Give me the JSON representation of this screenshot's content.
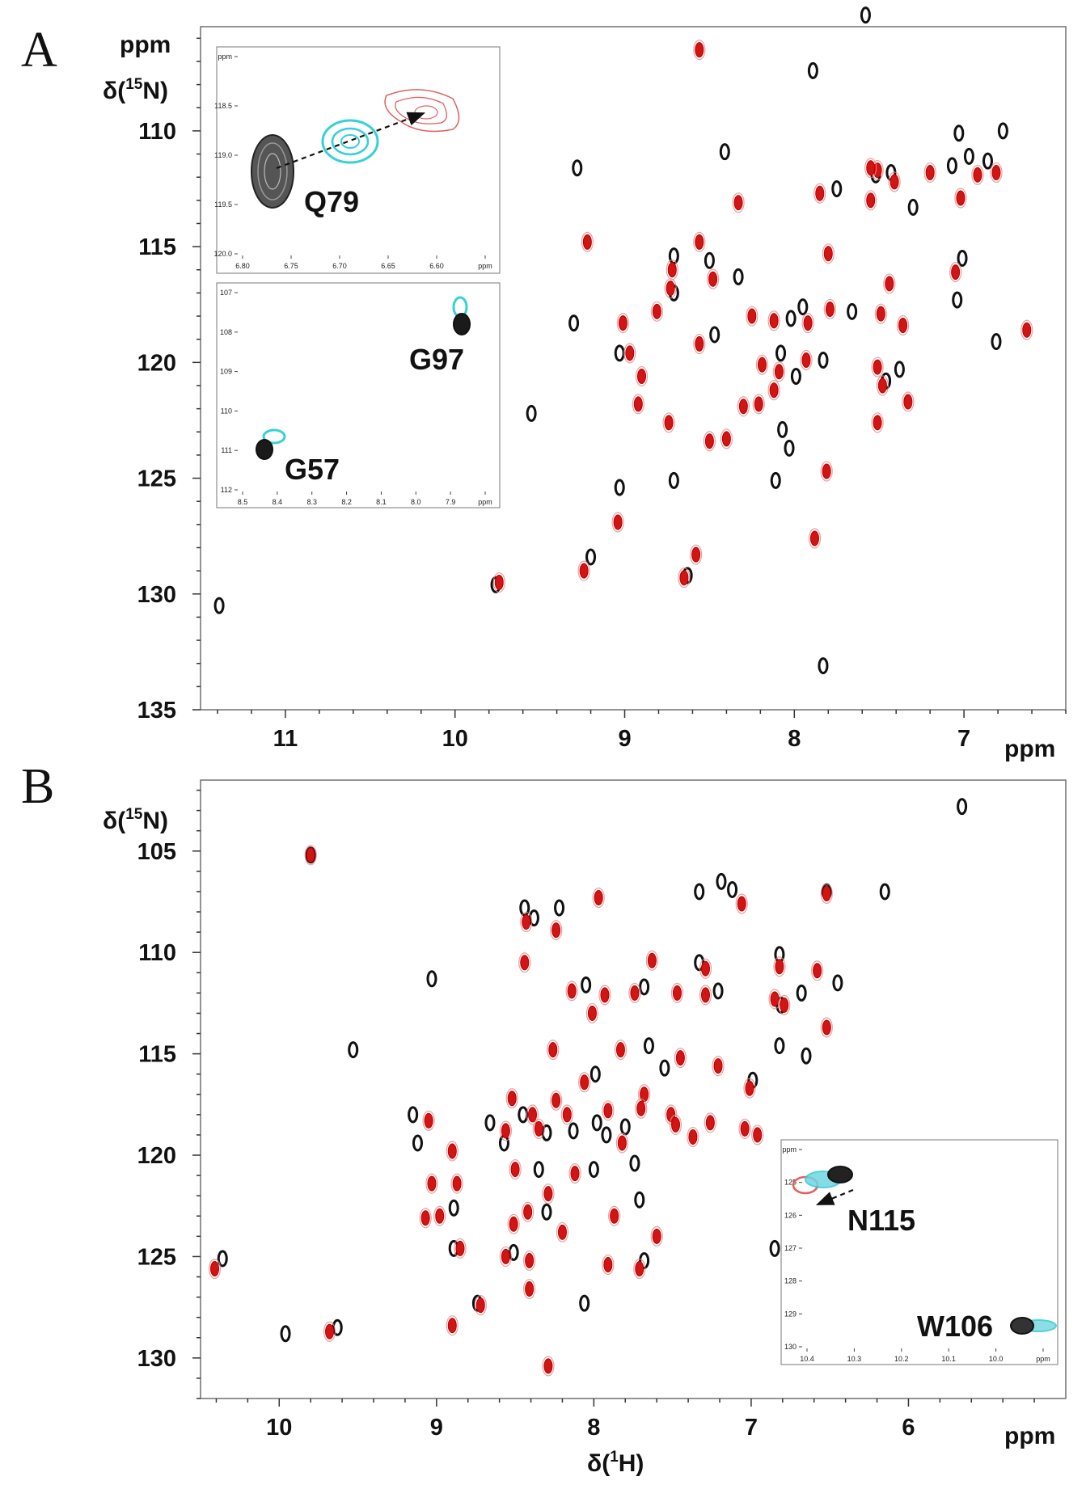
{
  "chart_data": [
    {
      "panel": "A",
      "type": "scatter",
      "subtype": "2D 1H-15N HSQC overlay",
      "xlabel": "ppm",
      "ylabel_top": "ppm",
      "ylabel": "δ(15N)",
      "xlim": [
        11.5,
        6.4
      ],
      "ylim": [
        105.5,
        135
      ],
      "xticks": [
        "11",
        "10",
        "9",
        "8",
        "7"
      ],
      "yticks": [
        "110",
        "115",
        "120",
        "125",
        "130",
        "135"
      ],
      "series": [
        {
          "name": "black",
          "color": "#111111",
          "points": [
            [
              7.58,
              105.0
            ],
            [
              7.89,
              107.4
            ],
            [
              6.77,
              110.0
            ],
            [
              7.03,
              110.1
            ],
            [
              7.07,
              111.5
            ],
            [
              6.86,
              111.3
            ],
            [
              6.97,
              111.1
            ],
            [
              7.52,
              111.9
            ],
            [
              7.43,
              111.8
            ],
            [
              8.41,
              110.9
            ],
            [
              9.28,
              111.6
            ],
            [
              7.3,
              113.3
            ],
            [
              7.75,
              112.5
            ],
            [
              7.01,
              115.5
            ],
            [
              8.71,
              115.4
            ],
            [
              8.5,
              115.6
            ],
            [
              8.33,
              116.3
            ],
            [
              7.04,
              117.3
            ],
            [
              8.71,
              117.0
            ],
            [
              7.95,
              117.6
            ],
            [
              7.66,
              117.8
            ],
            [
              9.3,
              118.3
            ],
            [
              8.02,
              118.1
            ],
            [
              8.47,
              118.8
            ],
            [
              8.08,
              119.6
            ],
            [
              7.83,
              119.9
            ],
            [
              6.81,
              119.1
            ],
            [
              7.99,
              120.6
            ],
            [
              7.46,
              120.8
            ],
            [
              7.38,
              120.3
            ],
            [
              9.03,
              119.6
            ],
            [
              9.55,
              122.2
            ],
            [
              8.07,
              122.9
            ],
            [
              8.03,
              123.7
            ],
            [
              9.03,
              125.4
            ],
            [
              8.71,
              125.1
            ],
            [
              8.11,
              125.1
            ],
            [
              9.2,
              128.4
            ],
            [
              8.63,
              129.2
            ],
            [
              9.76,
              129.6
            ],
            [
              11.39,
              130.5
            ],
            [
              7.83,
              133.1
            ]
          ]
        },
        {
          "name": "red",
          "color": "#d41616",
          "points": [
            [
              8.56,
              106.5
            ],
            [
              7.51,
              111.7
            ],
            [
              7.41,
              112.2
            ],
            [
              7.2,
              111.8
            ],
            [
              6.92,
              111.9
            ],
            [
              6.81,
              111.8
            ],
            [
              7.55,
              111.6
            ],
            [
              7.85,
              112.7
            ],
            [
              7.02,
              112.9
            ],
            [
              7.55,
              113.0
            ],
            [
              8.33,
              113.1
            ],
            [
              9.22,
              114.8
            ],
            [
              8.56,
              114.8
            ],
            [
              8.72,
              116.0
            ],
            [
              8.48,
              116.4
            ],
            [
              8.73,
              116.8
            ],
            [
              7.8,
              115.3
            ],
            [
              7.44,
              116.6
            ],
            [
              7.05,
              116.1
            ],
            [
              6.63,
              118.6
            ],
            [
              9.01,
              118.3
            ],
            [
              8.81,
              117.8
            ],
            [
              8.56,
              119.2
            ],
            [
              8.25,
              118.0
            ],
            [
              8.12,
              118.2
            ],
            [
              7.92,
              118.3
            ],
            [
              7.79,
              117.7
            ],
            [
              7.49,
              117.9
            ],
            [
              7.36,
              118.4
            ],
            [
              8.97,
              119.6
            ],
            [
              8.9,
              120.6
            ],
            [
              8.19,
              120.1
            ],
            [
              8.09,
              120.4
            ],
            [
              7.93,
              119.9
            ],
            [
              8.12,
              121.2
            ],
            [
              8.21,
              121.8
            ],
            [
              8.3,
              121.9
            ],
            [
              8.92,
              121.8
            ],
            [
              8.74,
              122.6
            ],
            [
              8.5,
              123.4
            ],
            [
              8.4,
              123.3
            ],
            [
              7.51,
              122.6
            ],
            [
              7.51,
              120.2
            ],
            [
              7.48,
              121.0
            ],
            [
              7.33,
              121.7
            ],
            [
              7.81,
              124.7
            ],
            [
              9.04,
              126.9
            ],
            [
              7.88,
              127.6
            ],
            [
              8.58,
              128.3
            ],
            [
              9.24,
              129.0
            ],
            [
              9.74,
              129.5
            ],
            [
              8.65,
              129.3
            ]
          ]
        }
      ],
      "insets": [
        {
          "xlim": [
            6.8,
            6.57
          ],
          "ylim": [
            118.0,
            120.0
          ],
          "xticks": [
            "6.80",
            "6.75",
            "6.70",
            "6.65",
            "6.60",
            "ppm"
          ],
          "yticks": [
            "ppm",
            "118.5",
            "119.0",
            "119.5",
            "120.0"
          ],
          "annotation": "Q79",
          "arrow": "dashed, from black to red"
        },
        {
          "xlim": [
            8.5,
            7.85
          ],
          "ylim": [
            106.6,
            112.0
          ],
          "xticks": [
            "8.5",
            "8.4",
            "8.3",
            "8.2",
            "8.1",
            "8.0",
            "7.9",
            "ppm"
          ],
          "yticks": [
            "107",
            "108",
            "109",
            "110",
            "111",
            "112"
          ],
          "annotations": [
            "G97",
            "G57"
          ]
        }
      ]
    },
    {
      "panel": "B",
      "type": "scatter",
      "subtype": "2D 1H-15N HSQC overlay",
      "xlabel": "δ(1H)",
      "xlabel_unit": "ppm",
      "ylabel": "δ(15N)",
      "xlim": [
        10.5,
        5.0
      ],
      "ylim": [
        101.5,
        132
      ],
      "xticks": [
        "10",
        "9",
        "8",
        "7",
        "6"
      ],
      "yticks": [
        "105",
        "110",
        "115",
        "120",
        "125",
        "130"
      ],
      "series": [
        {
          "name": "black",
          "color": "#111111",
          "points": [
            [
              5.66,
              102.8
            ],
            [
              9.8,
              105.2
            ],
            [
              7.19,
              106.5
            ],
            [
              7.12,
              106.9
            ],
            [
              6.15,
              107.0
            ],
            [
              7.33,
              107.0
            ],
            [
              8.44,
              107.8
            ],
            [
              8.22,
              107.8
            ],
            [
              8.38,
              108.3
            ],
            [
              6.52,
              107.0
            ],
            [
              6.82,
              110.1
            ],
            [
              7.33,
              110.5
            ],
            [
              6.45,
              111.5
            ],
            [
              7.21,
              111.9
            ],
            [
              6.68,
              112.0
            ],
            [
              6.81,
              112.6
            ],
            [
              9.03,
              111.3
            ],
            [
              8.05,
              111.6
            ],
            [
              7.68,
              111.7
            ],
            [
              6.82,
              114.6
            ],
            [
              9.53,
              114.8
            ],
            [
              7.65,
              114.6
            ],
            [
              6.65,
              115.1
            ],
            [
              7.55,
              115.7
            ],
            [
              7.99,
              116.0
            ],
            [
              6.99,
              116.3
            ],
            [
              9.15,
              118.0
            ],
            [
              8.66,
              118.4
            ],
            [
              7.98,
              118.4
            ],
            [
              8.45,
              118.0
            ],
            [
              7.8,
              118.6
            ],
            [
              8.13,
              118.8
            ],
            [
              8.3,
              118.9
            ],
            [
              7.92,
              119.0
            ],
            [
              7.74,
              120.4
            ],
            [
              9.12,
              119.4
            ],
            [
              8.57,
              119.4
            ],
            [
              8.0,
              120.7
            ],
            [
              8.35,
              120.7
            ],
            [
              8.89,
              122.6
            ],
            [
              7.71,
              122.2
            ],
            [
              8.3,
              122.8
            ],
            [
              10.36,
              125.1
            ],
            [
              8.89,
              124.6
            ],
            [
              8.51,
              124.8
            ],
            [
              7.68,
              125.2
            ],
            [
              6.85,
              124.6
            ],
            [
              9.63,
              128.5
            ],
            [
              8.06,
              127.3
            ],
            [
              8.74,
              127.3
            ],
            [
              9.96,
              128.8
            ]
          ]
        },
        {
          "name": "red",
          "color": "#d41616",
          "points": [
            [
              9.8,
              105.2
            ],
            [
              7.97,
              107.3
            ],
            [
              7.06,
              107.6
            ],
            [
              6.52,
              107.1
            ],
            [
              8.43,
              108.5
            ],
            [
              8.24,
              108.9
            ],
            [
              8.44,
              110.5
            ],
            [
              7.63,
              110.4
            ],
            [
              7.29,
              110.8
            ],
            [
              6.82,
              110.7
            ],
            [
              6.58,
              110.9
            ],
            [
              8.14,
              111.9
            ],
            [
              7.93,
              112.1
            ],
            [
              7.47,
              112.0
            ],
            [
              7.29,
              112.1
            ],
            [
              6.85,
              112.3
            ],
            [
              8.01,
              113.0
            ],
            [
              7.74,
              112.0
            ],
            [
              6.79,
              112.6
            ],
            [
              6.52,
              113.7
            ],
            [
              7.83,
              114.8
            ],
            [
              8.26,
              114.8
            ],
            [
              7.45,
              115.2
            ],
            [
              7.21,
              115.6
            ],
            [
              8.06,
              116.4
            ],
            [
              7.68,
              117.0
            ],
            [
              7.01,
              116.7
            ],
            [
              8.52,
              117.2
            ],
            [
              8.24,
              117.3
            ],
            [
              7.7,
              117.7
            ],
            [
              8.39,
              118.0
            ],
            [
              8.17,
              118.0
            ],
            [
              7.91,
              117.8
            ],
            [
              7.51,
              118.0
            ],
            [
              7.26,
              118.4
            ],
            [
              6.96,
              119.0
            ],
            [
              8.56,
              118.8
            ],
            [
              8.35,
              118.7
            ],
            [
              7.48,
              118.5
            ],
            [
              7.37,
              119.1
            ],
            [
              7.04,
              118.7
            ],
            [
              9.05,
              118.3
            ],
            [
              8.9,
              119.8
            ],
            [
              7.82,
              119.4
            ],
            [
              8.5,
              120.7
            ],
            [
              8.12,
              120.9
            ],
            [
              8.87,
              121.4
            ],
            [
              9.03,
              121.4
            ],
            [
              8.29,
              121.9
            ],
            [
              8.42,
              122.8
            ],
            [
              9.07,
              123.1
            ],
            [
              8.98,
              123.0
            ],
            [
              8.2,
              123.8
            ],
            [
              8.51,
              123.4
            ],
            [
              7.87,
              123.0
            ],
            [
              7.6,
              124.0
            ],
            [
              8.41,
              125.2
            ],
            [
              8.56,
              125.0
            ],
            [
              7.71,
              125.6
            ],
            [
              7.91,
              125.4
            ],
            [
              8.85,
              124.6
            ],
            [
              10.41,
              125.6
            ],
            [
              9.68,
              128.7
            ],
            [
              8.41,
              126.6
            ],
            [
              8.72,
              127.4
            ],
            [
              8.9,
              128.4
            ],
            [
              8.29,
              130.4
            ]
          ]
        }
      ],
      "insets": [
        {
          "xlim": [
            10.43,
            9.75
          ],
          "ylim": [
            124.7,
            130.0
          ],
          "xticks": [
            "10.4",
            "10.3",
            "10.2",
            "10.1",
            "10.0",
            "ppm"
          ],
          "yticks": [
            "ppm",
            "125",
            "126",
            "127",
            "128",
            "129",
            "130"
          ],
          "annotations": [
            "N115",
            "W106"
          ],
          "arrow": "dashed, from black to red"
        }
      ]
    }
  ],
  "labels": {
    "panel_a": "A",
    "panel_b": "B",
    "ppm": "ppm",
    "y_axis": "δ(15N)",
    "x_axis": "δ(1H)"
  }
}
